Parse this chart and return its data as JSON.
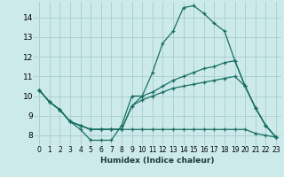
{
  "xlabel": "Humidex (Indice chaleur)",
  "background_color": "#cceaea",
  "grid_color": "#aacccc",
  "line_color": "#1a6e62",
  "xlim": [
    -0.5,
    23.5
  ],
  "ylim": [
    7.5,
    14.8
  ],
  "xticks": [
    0,
    1,
    2,
    3,
    4,
    5,
    6,
    7,
    8,
    9,
    10,
    11,
    12,
    13,
    14,
    15,
    16,
    17,
    18,
    19,
    20,
    21,
    22,
    23
  ],
  "yticks": [
    8,
    9,
    10,
    11,
    12,
    13,
    14
  ],
  "series": [
    [
      10.3,
      9.7,
      9.3,
      8.7,
      8.3,
      7.75,
      7.75,
      7.75,
      8.5,
      10.0,
      10.0,
      11.2,
      12.7,
      13.3,
      14.5,
      14.6,
      14.2,
      13.7,
      13.3,
      11.8,
      10.5,
      9.4,
      8.5,
      7.9
    ],
    [
      10.3,
      9.7,
      9.3,
      8.7,
      8.5,
      8.3,
      8.3,
      8.3,
      8.3,
      9.5,
      10.0,
      10.2,
      10.5,
      10.8,
      11.0,
      11.2,
      11.4,
      11.5,
      11.7,
      11.8,
      10.5,
      9.4,
      8.5,
      7.9
    ],
    [
      10.3,
      9.7,
      9.3,
      8.7,
      8.5,
      8.3,
      8.3,
      8.3,
      8.3,
      9.5,
      9.8,
      10.0,
      10.2,
      10.4,
      10.5,
      10.6,
      10.7,
      10.8,
      10.9,
      11.0,
      10.5,
      9.4,
      8.5,
      7.9
    ],
    [
      10.3,
      9.7,
      9.3,
      8.7,
      8.5,
      8.3,
      8.3,
      8.3,
      8.3,
      8.3,
      8.3,
      8.3,
      8.3,
      8.3,
      8.3,
      8.3,
      8.3,
      8.3,
      8.3,
      8.3,
      8.3,
      8.1,
      8.0,
      7.9
    ]
  ]
}
